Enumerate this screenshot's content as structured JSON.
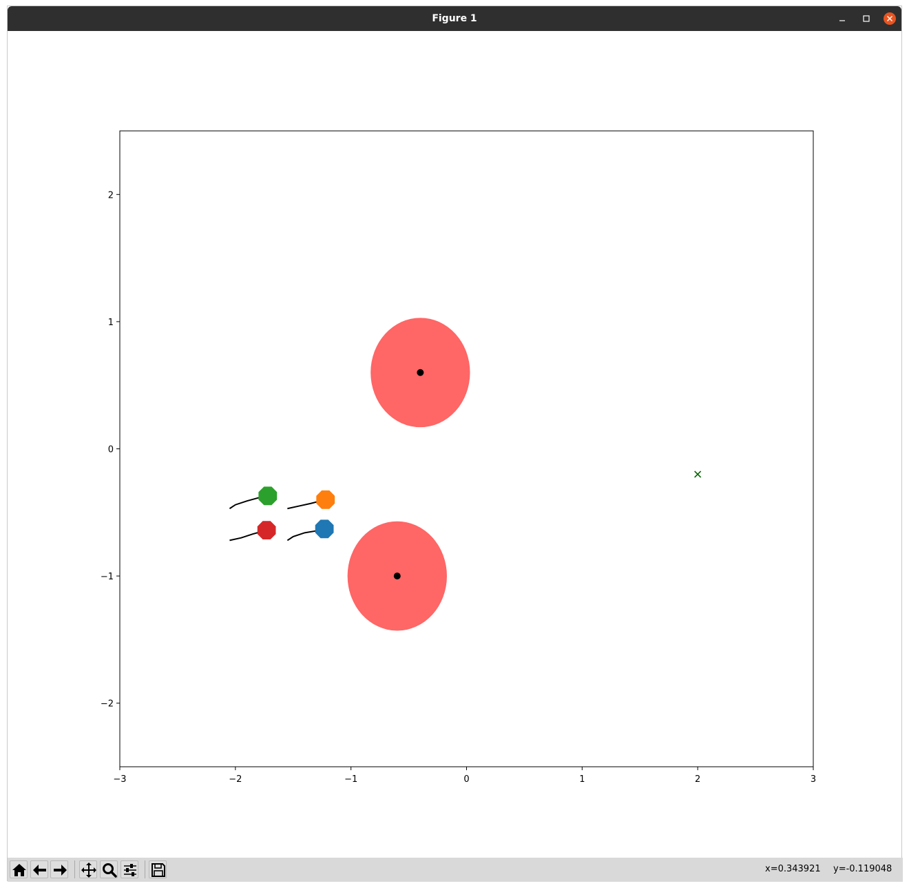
{
  "window": {
    "title": "Figure 1"
  },
  "toolbar": {
    "buttons": [
      {
        "name": "home-button",
        "icon": "home-icon"
      },
      {
        "name": "back-button",
        "icon": "arrow-left-icon"
      },
      {
        "name": "forward-button",
        "icon": "arrow-right-icon"
      },
      {
        "name": "pan-button",
        "icon": "move-icon"
      },
      {
        "name": "zoom-button",
        "icon": "magnifier-icon"
      },
      {
        "name": "configure-subplots-button",
        "icon": "sliders-icon"
      },
      {
        "name": "save-button",
        "icon": "floppy-disk-icon"
      }
    ],
    "x_readout": "x=0.343921",
    "y_readout": "y=-0.119048"
  },
  "chart_data": {
    "type": "scatter",
    "xlim": [
      -3,
      3
    ],
    "ylim": [
      -2.5,
      2.5
    ],
    "xticks": [
      -3,
      -2,
      -1,
      0,
      1,
      2,
      3
    ],
    "yticks": [
      -2,
      -1,
      0,
      1,
      2
    ],
    "xtick_labels": [
      "−3",
      "−2",
      "−1",
      "0",
      "1",
      "2",
      "3"
    ],
    "ytick_labels": [
      "−2",
      "−1",
      "0",
      "1",
      "2"
    ],
    "grid": false,
    "obstacles": [
      {
        "center": [
          -0.4,
          0.6
        ],
        "radius": 0.43,
        "color": "#ff6666"
      },
      {
        "center": [
          -0.6,
          -1.0
        ],
        "radius": 0.43,
        "color": "#ff6666"
      }
    ],
    "obstacle_centers": [
      [
        -0.4,
        0.6
      ],
      [
        -0.6,
        -1.0
      ]
    ],
    "goal": {
      "x": 2.0,
      "y": -0.2,
      "marker": "x",
      "color": "#006400"
    },
    "agents": [
      {
        "color": "#2ca02c",
        "position": [
          -1.72,
          -0.37
        ],
        "trail": [
          [
            -2.05,
            -0.47
          ],
          [
            -2.0,
            -0.44
          ],
          [
            -1.9,
            -0.41
          ],
          [
            -1.8,
            -0.385
          ],
          [
            -1.72,
            -0.37
          ]
        ]
      },
      {
        "color": "#ff7f0e",
        "position": [
          -1.22,
          -0.4
        ],
        "trail": [
          [
            -1.55,
            -0.47
          ],
          [
            -1.45,
            -0.45
          ],
          [
            -1.35,
            -0.43
          ],
          [
            -1.22,
            -0.4
          ]
        ]
      },
      {
        "color": "#d62728",
        "position": [
          -1.73,
          -0.64
        ],
        "trail": [
          [
            -2.05,
            -0.72
          ],
          [
            -1.95,
            -0.7
          ],
          [
            -1.85,
            -0.67
          ],
          [
            -1.73,
            -0.64
          ]
        ]
      },
      {
        "color": "#1f77b4",
        "position": [
          -1.23,
          -0.63
        ],
        "trail": [
          [
            -1.55,
            -0.72
          ],
          [
            -1.5,
            -0.69
          ],
          [
            -1.4,
            -0.66
          ],
          [
            -1.3,
            -0.645
          ],
          [
            -1.23,
            -0.63
          ]
        ]
      }
    ],
    "trail_color": "#000000"
  }
}
